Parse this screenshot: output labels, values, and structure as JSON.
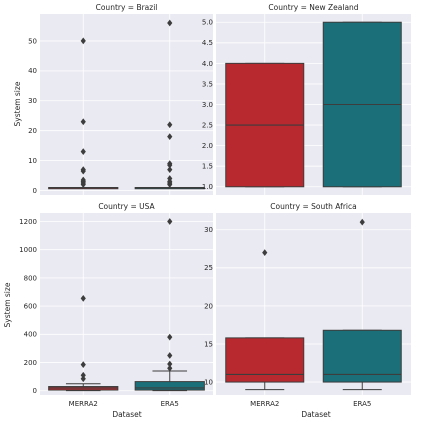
{
  "chart_data": {
    "type": "box",
    "xlabel": "Dataset",
    "ylabel": "System size",
    "categories": [
      "MERRA2",
      "ERA5"
    ],
    "colors": {
      "MERRA2": "#b8292f",
      "ERA5": "#1a6f78"
    },
    "panels": [
      {
        "title": "Country = Brazil",
        "ylim": [
          -1.5,
          59
        ],
        "yticks": [
          0,
          10,
          20,
          30,
          40,
          50
        ],
        "boxes": [
          {
            "category": "MERRA2",
            "q1": 1,
            "median": 1,
            "q3": 1,
            "whisker_low": 1,
            "whisker_high": 1,
            "outliers": [
              2,
              2.5,
              3,
              3.5,
              6.5,
              7,
              13,
              23,
              50
            ]
          },
          {
            "category": "ERA5",
            "q1": 1,
            "median": 1,
            "q3": 1,
            "whisker_low": 1,
            "whisker_high": 1,
            "outliers": [
              2,
              2.5,
              3,
              4,
              7,
              8.5,
              9,
              18,
              22,
              56
            ]
          }
        ]
      },
      {
        "title": "Country = New Zealand",
        "ylim": [
          0.8,
          5.2
        ],
        "yticks": [
          1.0,
          1.5,
          2.0,
          2.5,
          3.0,
          3.5,
          4.0,
          4.5,
          5.0
        ],
        "boxes": [
          {
            "category": "MERRA2",
            "q1": 1,
            "median": 2.5,
            "q3": 4,
            "whisker_low": 1,
            "whisker_high": 4,
            "outliers": []
          },
          {
            "category": "ERA5",
            "q1": 1,
            "median": 3,
            "q3": 5,
            "whisker_low": 1,
            "whisker_high": 5,
            "outliers": []
          }
        ]
      },
      {
        "title": "Country = USA",
        "ylim": [
          -30,
          1260
        ],
        "yticks": [
          0,
          200,
          400,
          600,
          800,
          1000,
          1200
        ],
        "boxes": [
          {
            "category": "MERRA2",
            "q1": 5,
            "median": 20,
            "q3": 30,
            "whisker_low": 1,
            "whisker_high": 50,
            "outliers": [
              85,
              110,
              185,
              655
            ]
          },
          {
            "category": "ERA5",
            "q1": 5,
            "median": 20,
            "q3": 65,
            "whisker_low": 1,
            "whisker_high": 140,
            "outliers": [
              160,
              190,
              250,
              380,
              1200
            ]
          }
        ]
      },
      {
        "title": "Country = South Africa",
        "ylim": [
          8.3,
          32.2
        ],
        "yticks": [
          10,
          15,
          20,
          25,
          30
        ],
        "boxes": [
          {
            "category": "MERRA2",
            "q1": 10,
            "median": 11,
            "q3": 15.8,
            "whisker_low": 9,
            "whisker_high": 15.8,
            "outliers": [
              27
            ]
          },
          {
            "category": "ERA5",
            "q1": 10,
            "median": 11,
            "q3": 16.8,
            "whisker_low": 9,
            "whisker_high": 16.8,
            "outliers": [
              31
            ]
          }
        ]
      }
    ]
  }
}
